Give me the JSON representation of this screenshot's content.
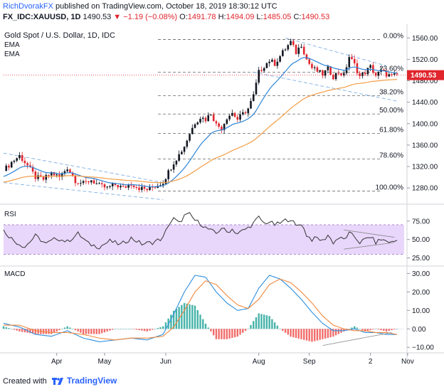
{
  "header": {
    "author": "RichDvorakFX",
    "published": "published on TradingView.com, October 18, 2019 18:30:12 UTC",
    "symbol": "FX_IDC:XAUUSD, 1D",
    "last": "1490.53",
    "change": "▼ −1.19 (−0.08%)",
    "open_label": "O:",
    "open": "1491.78",
    "high_label": "H:",
    "high": "1494.09",
    "low_label": "L:",
    "low": "1485.05",
    "close_label": "C:",
    "close": "1490.53"
  },
  "footer": {
    "created_with": "Created with",
    "brand": "TradingView"
  },
  "colors": {
    "up": "#131722",
    "down": "#e0252d",
    "ema_fast": "#2f84d6",
    "ema_slow": "#f39c44",
    "trendline": "#8ab6e6",
    "fib": "#666666",
    "rsi_line": "#333333",
    "rsi_band": "#e9d6fb",
    "macd": "#2f8fdd",
    "signal": "#f0883e",
    "hist_up": "#26a69a",
    "hist_down": "#ef5350",
    "price_label": "#e0252d"
  },
  "chart_data": [
    {
      "type": "candlestick",
      "title": "Gold Spot / U.S. Dollar, 1D, IDC",
      "legend": [
        "EMA",
        "EMA"
      ],
      "ylim": [
        1255,
        1575
      ],
      "y_ticks": [
        "1560.00",
        "1520.00",
        "1480.00",
        "1440.00",
        "1400.00",
        "1360.00",
        "1320.00",
        "1280.00"
      ],
      "x_ticks": [
        "Apr",
        "May",
        "Jun",
        "Aug",
        "Sep",
        "2",
        "Nov"
      ],
      "last_price_label": "1490.53",
      "fib_levels": [
        {
          "label": "0.00%",
          "value": 1557
        },
        {
          "label": "23.60%",
          "value": 1496
        },
        {
          "label": "38.20%",
          "value": 1452
        },
        {
          "label": "50.00%",
          "value": 1418
        },
        {
          "label": "61.80%",
          "value": 1382
        },
        {
          "label": "78.60%",
          "value": 1334
        },
        {
          "label": "100.00%",
          "value": 1274
        }
      ],
      "close_path": [
        [
          0,
          1312
        ],
        [
          3,
          1328
        ],
        [
          6,
          1340
        ],
        [
          9,
          1322
        ],
        [
          12,
          1300
        ],
        [
          15,
          1296
        ],
        [
          18,
          1308
        ],
        [
          21,
          1300
        ],
        [
          24,
          1318
        ],
        [
          27,
          1294
        ],
        [
          30,
          1288
        ],
        [
          33,
          1295
        ],
        [
          36,
          1284
        ],
        [
          39,
          1280
        ],
        [
          42,
          1286
        ],
        [
          45,
          1280
        ],
        [
          48,
          1288
        ],
        [
          51,
          1280
        ],
        [
          54,
          1277
        ],
        [
          57,
          1283
        ],
        [
          60,
          1291
        ],
        [
          62,
          1310
        ],
        [
          64,
          1328
        ],
        [
          66,
          1342
        ],
        [
          68,
          1358
        ],
        [
          70,
          1382
        ],
        [
          72,
          1402
        ],
        [
          74,
          1412
        ],
        [
          76,
          1408
        ],
        [
          78,
          1420
        ],
        [
          80,
          1398
        ],
        [
          82,
          1392
        ],
        [
          84,
          1412
        ],
        [
          86,
          1420
        ],
        [
          88,
          1408
        ],
        [
          90,
          1418
        ],
        [
          92,
          1428
        ],
        [
          94,
          1452
        ],
        [
          96,
          1496
        ],
        [
          98,
          1508
        ],
        [
          100,
          1518
        ],
        [
          102,
          1512
        ],
        [
          104,
          1526
        ],
        [
          106,
          1540
        ],
        [
          108,
          1552
        ],
        [
          110,
          1533
        ],
        [
          112,
          1548
        ],
        [
          114,
          1520
        ],
        [
          116,
          1504
        ],
        [
          118,
          1498
        ],
        [
          120,
          1492
        ],
        [
          122,
          1502
        ],
        [
          124,
          1488
        ],
        [
          126,
          1496
        ],
        [
          128,
          1490
        ],
        [
          130,
          1525
        ],
        [
          132,
          1510
        ],
        [
          134,
          1488
        ],
        [
          136,
          1496
        ],
        [
          138,
          1506
        ],
        [
          140,
          1490
        ],
        [
          142,
          1498
        ],
        [
          144,
          1492
        ],
        [
          146,
          1488
        ],
        [
          148,
          1491
        ]
      ]
    },
    {
      "type": "line",
      "title": "RSI",
      "ylim": [
        15,
        95
      ],
      "y_ticks": [
        "75.00",
        "50.00",
        "25.00"
      ],
      "band": [
        30,
        70
      ],
      "path": [
        [
          0,
          62
        ],
        [
          4,
          48
        ],
        [
          8,
          40
        ],
        [
          12,
          55
        ],
        [
          16,
          44
        ],
        [
          20,
          52
        ],
        [
          24,
          47
        ],
        [
          28,
          58
        ],
        [
          32,
          44
        ],
        [
          36,
          40
        ],
        [
          40,
          48
        ],
        [
          44,
          43
        ],
        [
          48,
          52
        ],
        [
          52,
          44
        ],
        [
          56,
          46
        ],
        [
          60,
          52
        ],
        [
          62,
          70
        ],
        [
          64,
          78
        ],
        [
          66,
          72
        ],
        [
          68,
          82
        ],
        [
          70,
          84
        ],
        [
          72,
          76
        ],
        [
          74,
          72
        ],
        [
          76,
          66
        ],
        [
          78,
          62
        ],
        [
          80,
          58
        ],
        [
          82,
          66
        ],
        [
          84,
          60
        ],
        [
          86,
          64
        ],
        [
          88,
          58
        ],
        [
          90,
          62
        ],
        [
          92,
          66
        ],
        [
          94,
          72
        ],
        [
          96,
          80
        ],
        [
          98,
          72
        ],
        [
          100,
          74
        ],
        [
          102,
          70
        ],
        [
          104,
          72
        ],
        [
          106,
          76
        ],
        [
          108,
          78
        ],
        [
          110,
          68
        ],
        [
          112,
          72
        ],
        [
          114,
          56
        ],
        [
          116,
          50
        ],
        [
          118,
          52
        ],
        [
          120,
          48
        ],
        [
          122,
          56
        ],
        [
          124,
          46
        ],
        [
          126,
          52
        ],
        [
          128,
          50
        ],
        [
          130,
          58
        ],
        [
          132,
          54
        ],
        [
          134,
          46
        ],
        [
          136,
          50
        ],
        [
          138,
          54
        ],
        [
          140,
          46
        ],
        [
          142,
          50
        ],
        [
          144,
          48
        ],
        [
          146,
          46
        ],
        [
          148,
          49
        ]
      ]
    },
    {
      "type": "line",
      "title": "MACD",
      "ylim": [
        -13,
        34
      ],
      "y_ticks": [
        "30.00",
        "20.00",
        "10.00",
        "0.00",
        "−10.00"
      ],
      "macd": [
        [
          0,
          3
        ],
        [
          6,
          1
        ],
        [
          12,
          -3
        ],
        [
          18,
          -4
        ],
        [
          24,
          -1
        ],
        [
          30,
          -5
        ],
        [
          36,
          -7
        ],
        [
          42,
          -6
        ],
        [
          48,
          -5
        ],
        [
          54,
          -6
        ],
        [
          60,
          -3
        ],
        [
          64,
          8
        ],
        [
          68,
          20
        ],
        [
          72,
          29
        ],
        [
          76,
          28
        ],
        [
          80,
          20
        ],
        [
          84,
          14
        ],
        [
          88,
          10
        ],
        [
          92,
          11
        ],
        [
          96,
          22
        ],
        [
          100,
          29
        ],
        [
          104,
          27
        ],
        [
          108,
          22
        ],
        [
          112,
          16
        ],
        [
          116,
          9
        ],
        [
          120,
          3
        ],
        [
          124,
          -1
        ],
        [
          128,
          -1
        ],
        [
          132,
          0
        ],
        [
          136,
          -2
        ],
        [
          140,
          -2
        ],
        [
          144,
          -3
        ],
        [
          148,
          -3
        ]
      ],
      "signal": [
        [
          0,
          2
        ],
        [
          6,
          2
        ],
        [
          12,
          -1
        ],
        [
          18,
          -2
        ],
        [
          24,
          -2
        ],
        [
          30,
          -3
        ],
        [
          36,
          -5
        ],
        [
          42,
          -6
        ],
        [
          48,
          -5
        ],
        [
          54,
          -5
        ],
        [
          60,
          -4
        ],
        [
          64,
          1
        ],
        [
          68,
          10
        ],
        [
          72,
          20
        ],
        [
          76,
          26
        ],
        [
          80,
          24
        ],
        [
          84,
          18
        ],
        [
          88,
          13
        ],
        [
          92,
          11
        ],
        [
          96,
          16
        ],
        [
          100,
          24
        ],
        [
          104,
          27
        ],
        [
          108,
          25
        ],
        [
          112,
          20
        ],
        [
          116,
          14
        ],
        [
          120,
          7
        ],
        [
          124,
          2
        ],
        [
          128,
          0
        ],
        [
          132,
          -1
        ],
        [
          136,
          -1
        ],
        [
          140,
          -2
        ],
        [
          144,
          -2
        ],
        [
          148,
          -3
        ]
      ]
    }
  ]
}
